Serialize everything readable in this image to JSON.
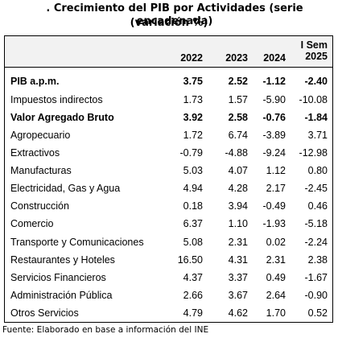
{
  "title_line1": ". Crecimiento del PIB por Actividades (serie encadenada)",
  "title_line2": "(variación %)",
  "header": {
    "y1": "2022",
    "y2": "2023",
    "y3": "2024",
    "y4_line1": "I  Sem",
    "y4_line2": "2025"
  },
  "rows": [
    {
      "label": "PIB a.p.m.",
      "v": [
        "3.75",
        "2.52",
        "-1.12",
        "-2.40"
      ],
      "bold": true
    },
    {
      "label": "Impuestos indirectos",
      "v": [
        "1.73",
        "1.57",
        "-5.90",
        "-10.08"
      ],
      "bold": false
    },
    {
      "label": "Valor Agregado Bruto",
      "v": [
        "3.92",
        "2.58",
        "-0.76",
        "-1.84"
      ],
      "bold": true
    },
    {
      "label": "Agropecuario",
      "v": [
        "1.72",
        "6.74",
        "-3.89",
        "3.71"
      ],
      "bold": false
    },
    {
      "label": "Extractivos",
      "v": [
        "-0.79",
        "-4.88",
        "-9.24",
        "-12.98"
      ],
      "bold": false
    },
    {
      "label": "Manufacturas",
      "v": [
        "5.03",
        "4.07",
        "1.12",
        "0.80"
      ],
      "bold": false
    },
    {
      "label": "Electricidad, Gas y Agua",
      "v": [
        "4.94",
        "4.28",
        "2.17",
        "-2.45"
      ],
      "bold": false
    },
    {
      "label": "Construcción",
      "v": [
        "0.18",
        "3.94",
        "-0.49",
        "0.46"
      ],
      "bold": false
    },
    {
      "label": "Comercio",
      "v": [
        "6.37",
        "1.10",
        "-1.93",
        "-5.18"
      ],
      "bold": false
    },
    {
      "label": "Transporte y Comunicaciones",
      "v": [
        "5.08",
        "2.31",
        "0.02",
        "-2.24"
      ],
      "bold": false
    },
    {
      "label": "Restaurantes y Hoteles",
      "v": [
        "16.50",
        "4.31",
        "2.31",
        "2.38"
      ],
      "bold": false
    },
    {
      "label": "Servicios Financieros",
      "v": [
        "4.37",
        "3.37",
        "0.49",
        "-1.67"
      ],
      "bold": false
    },
    {
      "label": "Administración Pública",
      "v": [
        "2.66",
        "3.67",
        "2.64",
        "-0.90"
      ],
      "bold": false
    },
    {
      "label": "Otros Servicios",
      "v": [
        "4.79",
        "4.62",
        "1.70",
        "0.52"
      ],
      "bold": false
    }
  ],
  "source": "Fuente: Elaborado en base a información del INE"
}
